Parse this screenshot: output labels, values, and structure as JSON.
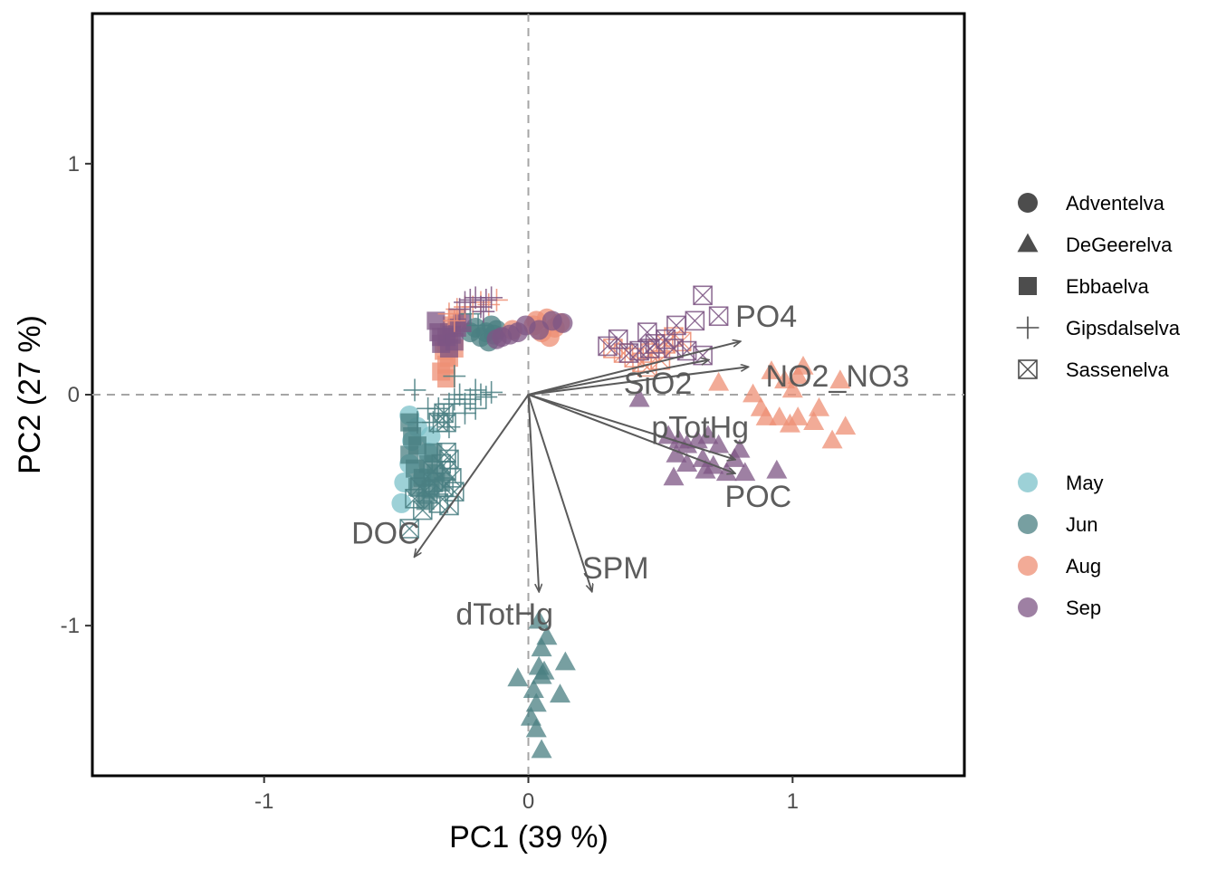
{
  "chart_data": {
    "type": "scatter",
    "title": "",
    "xlabel": "PC1 (39 %)",
    "ylabel": "PC2 (27 %)",
    "xlim": [
      -1.65,
      1.65
    ],
    "ylim": [
      -1.65,
      1.65
    ],
    "x_ticks": [
      {
        "value": -1,
        "label": "-1"
      },
      {
        "value": 0,
        "label": "0"
      },
      {
        "value": 1,
        "label": "1"
      }
    ],
    "y_ticks": [
      {
        "value": -1,
        "label": "-1"
      },
      {
        "value": 0,
        "label": "0"
      },
      {
        "value": 1,
        "label": "1"
      }
    ],
    "reference_lines": {
      "x": 0,
      "y": 0,
      "style": "dashed",
      "color": "#a6a6a6"
    },
    "grid": false,
    "legend_placement": "right",
    "legend_shape_entries": [
      {
        "name": "Adventelva",
        "shape": "circle"
      },
      {
        "name": "DeGeerelva",
        "shape": "triangle"
      },
      {
        "name": "Ebbaelva",
        "shape": "square"
      },
      {
        "name": "Gipsdalselva",
        "shape": "plus"
      },
      {
        "name": "Sassenelva",
        "shape": "boxed-x"
      }
    ],
    "legend_color_entries": [
      {
        "name": "May",
        "color": "#7cc2c9"
      },
      {
        "name": "Jun",
        "color": "#4a7f82"
      },
      {
        "name": "Aug",
        "color": "#ee8f74"
      },
      {
        "name": "Sep",
        "color": "#7d5684"
      }
    ],
    "loadings": [
      {
        "name": "PO4",
        "x": 0.8,
        "y": 0.23,
        "lx": 0.9,
        "ly": 0.33
      },
      {
        "name": "NO2_NO3",
        "x": 0.83,
        "y": 0.12,
        "lx": 1.17,
        "ly": 0.07
      },
      {
        "name": "SiO2",
        "x": 0.68,
        "y": 0.15,
        "lx": 0.49,
        "ly": 0.04
      },
      {
        "name": "pTotHg",
        "x": 0.78,
        "y": -0.28,
        "lx": 0.65,
        "ly": -0.15
      },
      {
        "name": "POC",
        "x": 0.78,
        "y": -0.34,
        "lx": 0.87,
        "ly": -0.45
      },
      {
        "name": "DOC",
        "x": -0.43,
        "y": -0.7,
        "lx": -0.54,
        "ly": -0.61
      },
      {
        "name": "SPM",
        "x": 0.24,
        "y": -0.85,
        "lx": 0.33,
        "ly": -0.76
      },
      {
        "name": "dTotHg",
        "x": 0.04,
        "y": -0.85,
        "lx": -0.09,
        "ly": -0.96
      }
    ],
    "series": [
      {
        "name": "Adventelva–May",
        "shape": "circle",
        "color": "#7cc2c9",
        "points": [
          [
            -0.48,
            -0.47
          ],
          [
            -0.47,
            -0.38
          ],
          [
            -0.45,
            -0.3
          ],
          [
            -0.44,
            -0.2
          ],
          [
            -0.42,
            -0.14
          ],
          [
            -0.4,
            -0.36
          ],
          [
            -0.38,
            -0.25
          ],
          [
            -0.37,
            -0.18
          ],
          [
            -0.45,
            -0.09
          ]
        ]
      },
      {
        "name": "Adventelva–Jun",
        "shape": "circle",
        "color": "#4a7f82",
        "points": [
          [
            -0.22,
            0.27
          ],
          [
            -0.2,
            0.29
          ],
          [
            -0.18,
            0.25
          ],
          [
            -0.16,
            0.27
          ],
          [
            -0.15,
            0.23
          ],
          [
            -0.14,
            0.3
          ],
          [
            -0.13,
            0.26
          ],
          [
            -0.12,
            0.28
          ]
        ]
      },
      {
        "name": "Adventelva–Aug",
        "shape": "circle",
        "color": "#ee8f74",
        "points": [
          [
            -0.06,
            0.28
          ],
          [
            0.02,
            0.3
          ],
          [
            0.05,
            0.27
          ],
          [
            0.08,
            0.25
          ],
          [
            0.1,
            0.29
          ],
          [
            0.03,
            0.32
          ],
          [
            0.07,
            0.33
          ],
          [
            0.12,
            0.31
          ]
        ]
      },
      {
        "name": "Adventelva–Sep",
        "shape": "circle",
        "color": "#7d5684",
        "points": [
          [
            -0.1,
            0.25
          ],
          [
            -0.07,
            0.26
          ],
          [
            -0.04,
            0.27
          ],
          [
            -0.01,
            0.3
          ],
          [
            0.04,
            0.28
          ],
          [
            0.09,
            0.32
          ],
          [
            0.13,
            0.31
          ],
          [
            -0.12,
            0.24
          ]
        ]
      },
      {
        "name": "DeGeerelva–Jun",
        "shape": "triangle",
        "color": "#4a7f82",
        "points": [
          [
            0.04,
            -0.98
          ],
          [
            0.05,
            -1.1
          ],
          [
            0.07,
            -1.05
          ],
          [
            0.14,
            -1.16
          ],
          [
            0.05,
            -1.22
          ],
          [
            0.04,
            -1.18
          ],
          [
            -0.04,
            -1.23
          ],
          [
            0.12,
            -1.3
          ],
          [
            0.03,
            -1.34
          ],
          [
            0.01,
            -1.4
          ],
          [
            0.03,
            -1.45
          ],
          [
            0.05,
            -1.54
          ],
          [
            0.06,
            -1.2
          ],
          [
            0.02,
            -1.28
          ]
        ]
      },
      {
        "name": "DeGeerelva–Aug",
        "shape": "triangle",
        "color": "#ee8f74",
        "points": [
          [
            0.72,
            0.05
          ],
          [
            0.92,
            0.1
          ],
          [
            0.97,
            0.06
          ],
          [
            1.02,
            0.08
          ],
          [
            1.04,
            0.12
          ],
          [
            0.85,
            0.0
          ],
          [
            0.88,
            -0.06
          ],
          [
            1.1,
            -0.06
          ],
          [
            1.18,
            0.06
          ],
          [
            0.9,
            -0.1
          ],
          [
            0.95,
            -0.1
          ],
          [
            0.99,
            -0.13
          ],
          [
            1.02,
            -0.1
          ],
          [
            1.08,
            -0.12
          ],
          [
            1.15,
            -0.2
          ],
          [
            1.2,
            -0.14
          ],
          [
            1.0,
            0.02
          ]
        ]
      },
      {
        "name": "DeGeerelva–Sep",
        "shape": "triangle",
        "color": "#7d5684",
        "points": [
          [
            0.42,
            -0.02
          ],
          [
            0.53,
            -0.18
          ],
          [
            0.57,
            -0.2
          ],
          [
            0.6,
            -0.22
          ],
          [
            0.64,
            -0.2
          ],
          [
            0.68,
            -0.18
          ],
          [
            0.72,
            -0.22
          ],
          [
            0.8,
            -0.24
          ],
          [
            0.56,
            -0.26
          ],
          [
            0.6,
            -0.3
          ],
          [
            0.66,
            -0.28
          ],
          [
            0.7,
            -0.31
          ],
          [
            0.75,
            -0.34
          ],
          [
            0.78,
            -0.28
          ],
          [
            0.82,
            -0.34
          ],
          [
            0.55,
            -0.36
          ],
          [
            0.67,
            -0.33
          ],
          [
            0.94,
            -0.33
          ]
        ]
      },
      {
        "name": "Ebbaelva–Jun",
        "shape": "square",
        "color": "#4a7f82",
        "points": [
          [
            -0.44,
            -0.18
          ],
          [
            -0.45,
            -0.26
          ],
          [
            -0.43,
            -0.32
          ],
          [
            -0.42,
            -0.22
          ],
          [
            -0.4,
            -0.36
          ],
          [
            -0.38,
            -0.3
          ],
          [
            -0.37,
            -0.41
          ],
          [
            -0.35,
            -0.34
          ],
          [
            -0.39,
            -0.46
          ],
          [
            -0.42,
            -0.4
          ],
          [
            -0.45,
            -0.12
          ],
          [
            -0.33,
            -0.38
          ],
          [
            -0.36,
            -0.25
          ]
        ]
      },
      {
        "name": "Ebbaelva–Aug",
        "shape": "square",
        "color": "#ee8f74",
        "points": [
          [
            -0.31,
            0.22
          ],
          [
            -0.32,
            0.19
          ],
          [
            -0.3,
            0.16
          ],
          [
            -0.31,
            0.13
          ],
          [
            -0.33,
            0.1
          ],
          [
            -0.3,
            0.27
          ],
          [
            -0.28,
            0.2
          ],
          [
            -0.31,
            0.07
          ],
          [
            -0.29,
            0.3
          ],
          [
            -0.27,
            0.33
          ]
        ]
      },
      {
        "name": "Ebbaelva–Sep",
        "shape": "square",
        "color": "#7d5684",
        "points": [
          [
            -0.35,
            0.32
          ],
          [
            -0.34,
            0.27
          ],
          [
            -0.33,
            0.25
          ],
          [
            -0.31,
            0.25
          ],
          [
            -0.29,
            0.26
          ],
          [
            -0.27,
            0.29
          ],
          [
            -0.25,
            0.31
          ],
          [
            -0.33,
            0.22
          ],
          [
            -0.3,
            0.2
          ],
          [
            -0.28,
            0.23
          ]
        ]
      },
      {
        "name": "Gipsdalselva–Jun",
        "shape": "plus",
        "color": "#4a7f82",
        "points": [
          [
            -0.43,
            0.02
          ],
          [
            -0.42,
            -0.12
          ],
          [
            -0.38,
            -0.06
          ],
          [
            -0.36,
            -0.12
          ],
          [
            -0.34,
            -0.06
          ],
          [
            -0.32,
            -0.09
          ],
          [
            -0.3,
            -0.04
          ],
          [
            -0.28,
            -0.02
          ],
          [
            -0.26,
            0.0
          ],
          [
            -0.24,
            -0.04
          ],
          [
            -0.22,
            -0.02
          ],
          [
            -0.2,
            0.02
          ],
          [
            -0.18,
            0.0
          ],
          [
            -0.16,
            -0.01
          ],
          [
            -0.14,
            0.01
          ],
          [
            -0.24,
            -0.08
          ],
          [
            -0.3,
            -0.14
          ],
          [
            -0.2,
            -0.06
          ],
          [
            -0.28,
            0.08
          ],
          [
            -0.19,
            0.3
          ],
          [
            -0.22,
            0.35
          ]
        ]
      },
      {
        "name": "Gipsdalselva–Aug",
        "shape": "plus",
        "color": "#ee8f74",
        "points": [
          [
            -0.3,
            0.35
          ],
          [
            -0.27,
            0.37
          ],
          [
            -0.24,
            0.38
          ],
          [
            -0.21,
            0.38
          ],
          [
            -0.18,
            0.4
          ],
          [
            -0.15,
            0.39
          ],
          [
            -0.12,
            0.41
          ],
          [
            -0.28,
            0.32
          ]
        ]
      },
      {
        "name": "Gipsdalselva–Sep",
        "shape": "plus",
        "color": "#7d5684",
        "points": [
          [
            -0.26,
            0.37
          ],
          [
            -0.24,
            0.4
          ],
          [
            -0.22,
            0.41
          ],
          [
            -0.2,
            0.42
          ],
          [
            -0.18,
            0.38
          ],
          [
            -0.16,
            0.41
          ],
          [
            -0.14,
            0.42
          ],
          [
            -0.17,
            0.36
          ]
        ]
      },
      {
        "name": "Sassenelva–Jun",
        "shape": "boxed-x",
        "color": "#4a7f82",
        "points": [
          [
            -0.45,
            -0.58
          ],
          [
            -0.43,
            -0.45
          ],
          [
            -0.41,
            -0.4
          ],
          [
            -0.4,
            -0.5
          ],
          [
            -0.38,
            -0.43
          ],
          [
            -0.36,
            -0.38
          ],
          [
            -0.34,
            -0.47
          ],
          [
            -0.33,
            -0.3
          ],
          [
            -0.32,
            -0.4
          ],
          [
            -0.31,
            -0.25
          ],
          [
            -0.3,
            -0.48
          ],
          [
            -0.29,
            -0.36
          ],
          [
            -0.28,
            -0.42
          ],
          [
            -0.31,
            -0.33
          ],
          [
            -0.34,
            -0.12
          ],
          [
            -0.32,
            -0.08
          ],
          [
            -0.31,
            -0.12
          ],
          [
            -0.3,
            -0.28
          ],
          [
            -0.36,
            -0.33
          ]
        ]
      },
      {
        "name": "Sassenelva–Aug",
        "shape": "boxed-x",
        "color": "#ee8f74",
        "points": [
          [
            0.32,
            0.2
          ],
          [
            0.36,
            0.18
          ],
          [
            0.4,
            0.16
          ],
          [
            0.43,
            0.14
          ],
          [
            0.46,
            0.18
          ],
          [
            0.49,
            0.2
          ],
          [
            0.52,
            0.22
          ],
          [
            0.55,
            0.25
          ],
          [
            0.58,
            0.23
          ],
          [
            0.5,
            0.15
          ],
          [
            0.45,
            0.12
          ]
        ]
      },
      {
        "name": "Sassenelva–Sep",
        "shape": "boxed-x",
        "color": "#7d5684",
        "points": [
          [
            0.3,
            0.21
          ],
          [
            0.34,
            0.24
          ],
          [
            0.38,
            0.18
          ],
          [
            0.42,
            0.19
          ],
          [
            0.45,
            0.27
          ],
          [
            0.48,
            0.22
          ],
          [
            0.52,
            0.24
          ],
          [
            0.56,
            0.3
          ],
          [
            0.6,
            0.19
          ],
          [
            0.63,
            0.32
          ],
          [
            0.66,
            0.17
          ],
          [
            0.72,
            0.34
          ],
          [
            0.66,
            0.43
          ],
          [
            0.46,
            0.2
          ],
          [
            0.55,
            0.2
          ]
        ]
      }
    ]
  }
}
